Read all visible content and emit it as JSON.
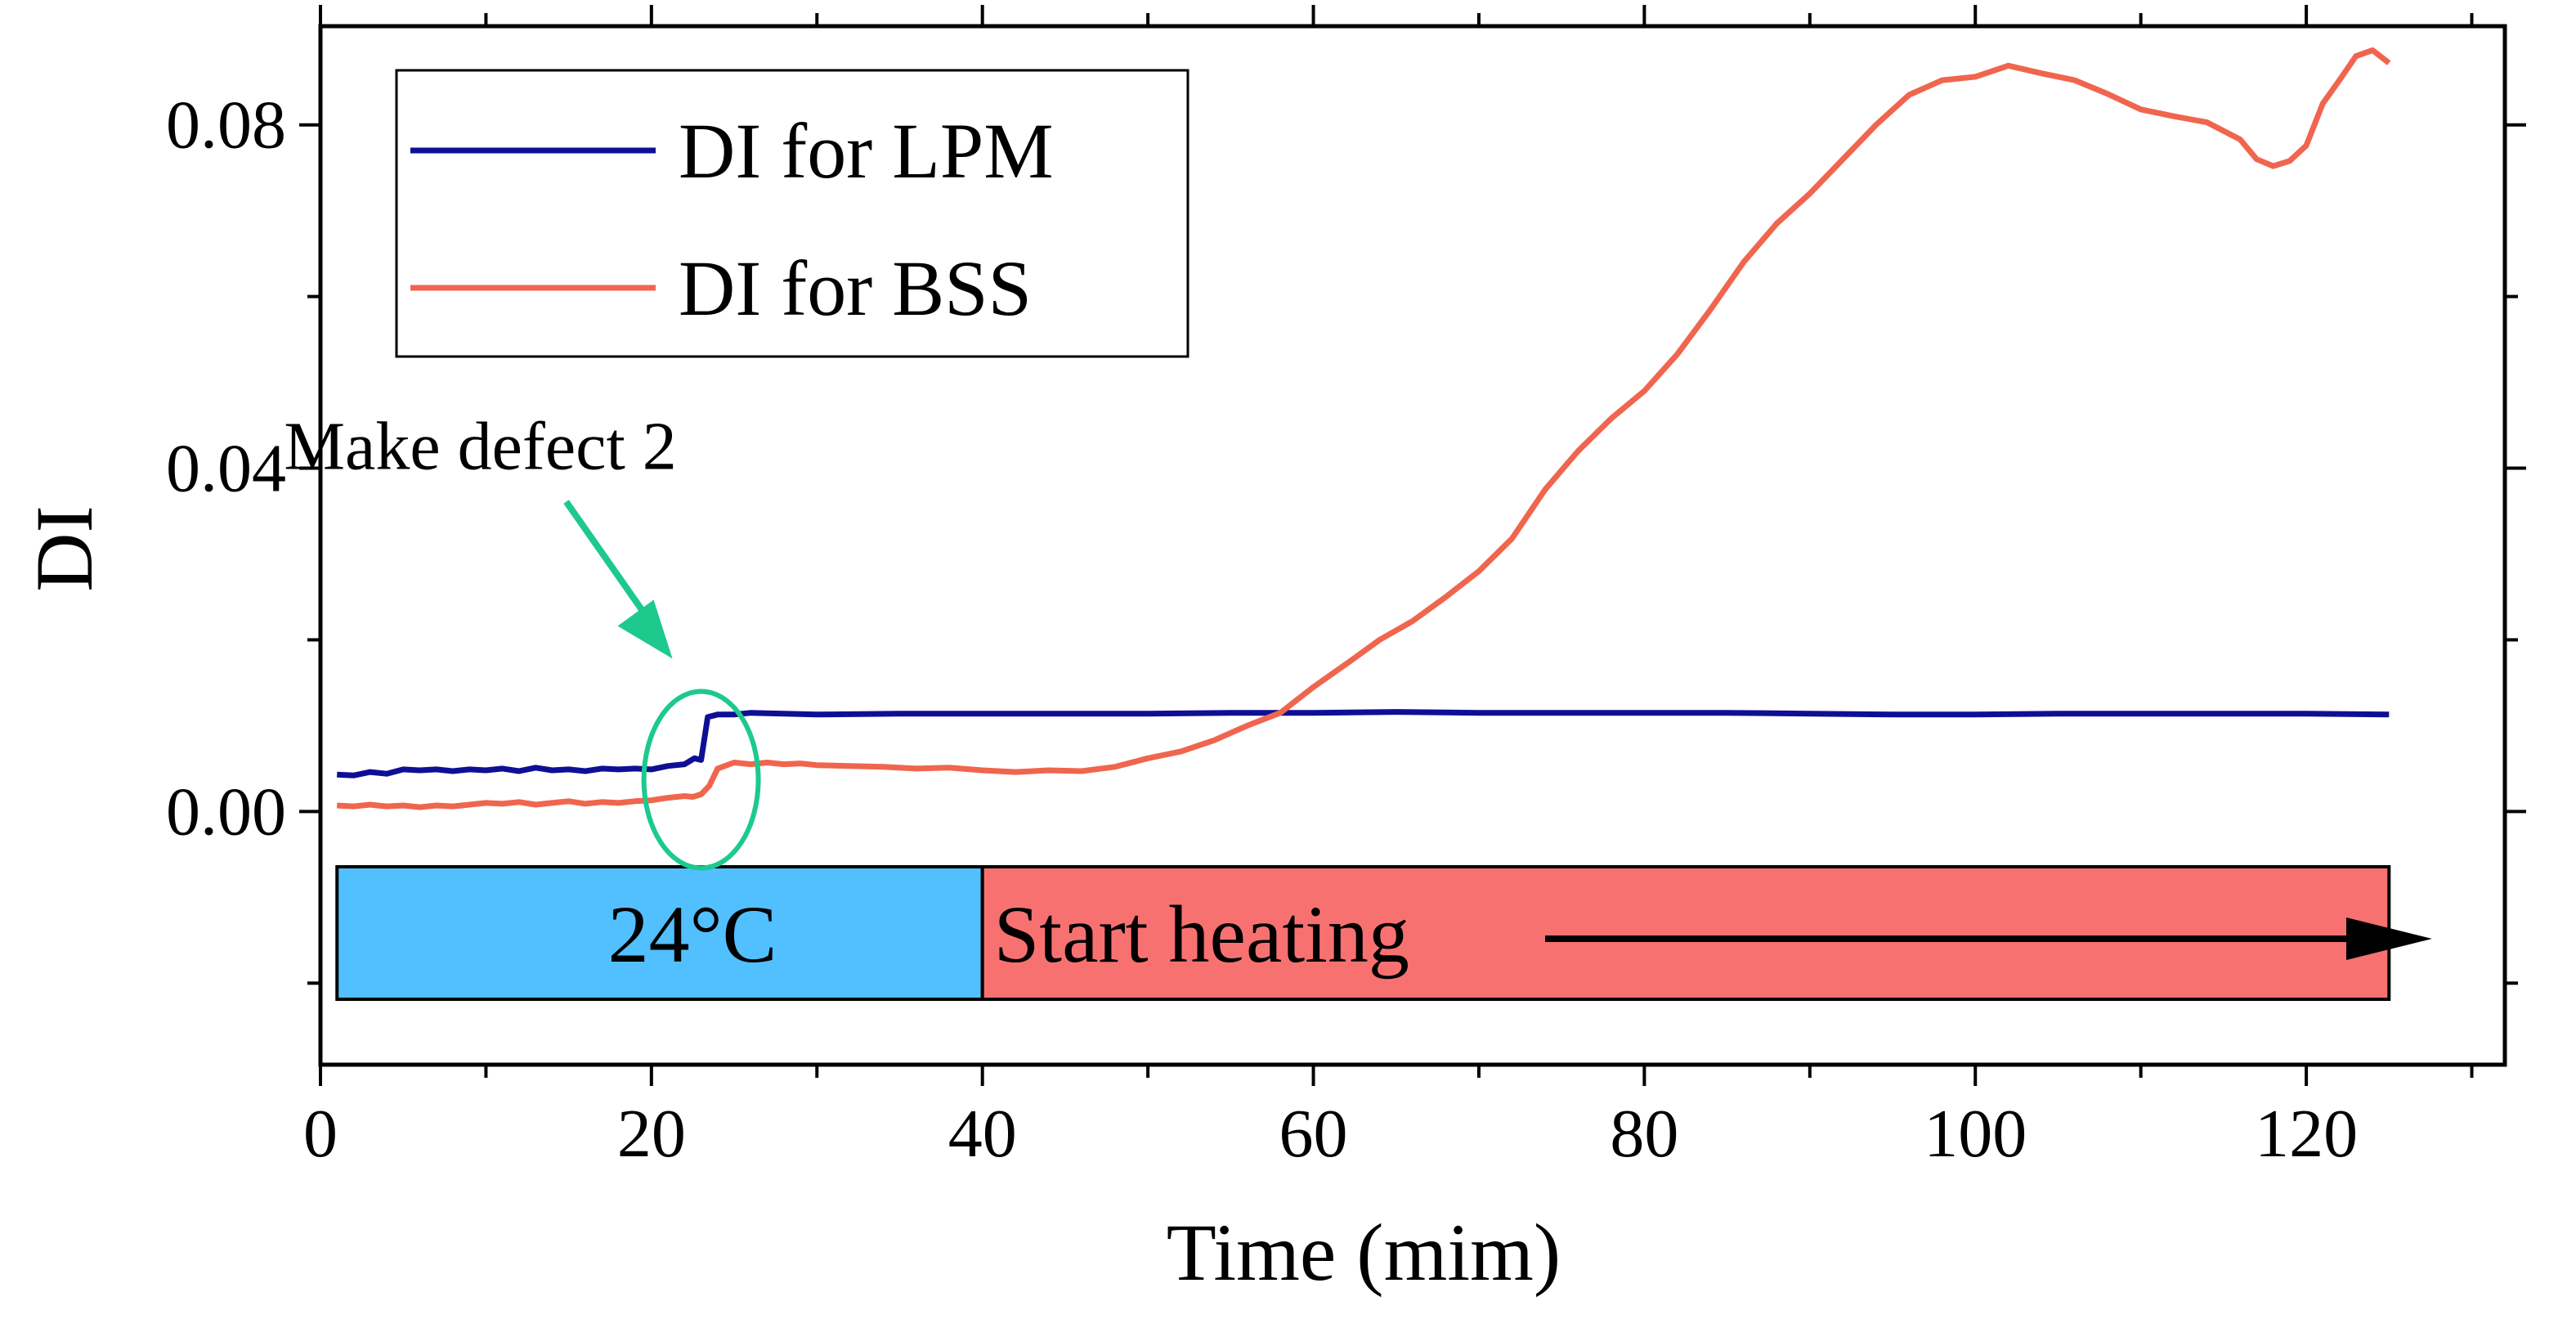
{
  "chart_data": {
    "type": "line",
    "title": "",
    "xlabel": "Time (mim)",
    "ylabel": "DI",
    "xlim": [
      0,
      132
    ],
    "ylim": [
      -0.0295,
      0.0915
    ],
    "x_ticks": [
      0,
      20,
      40,
      60,
      80,
      100,
      120
    ],
    "x_tick_labels": [
      "0",
      "20",
      "40",
      "60",
      "80",
      "100",
      "120"
    ],
    "y_ticks": [
      0.0,
      0.04,
      0.08
    ],
    "y_tick_labels": [
      "0.00",
      "0.04",
      "0.08"
    ],
    "grid": false,
    "legend_position": "top-left",
    "series": [
      {
        "name": "DI for LPM",
        "color": "#0f0f96",
        "points": [
          [
            1,
            0.0043
          ],
          [
            2,
            0.0042
          ],
          [
            3,
            0.0046
          ],
          [
            4,
            0.0044
          ],
          [
            5,
            0.0049
          ],
          [
            6,
            0.0048
          ],
          [
            7,
            0.0049
          ],
          [
            8,
            0.0047
          ],
          [
            9,
            0.0049
          ],
          [
            10,
            0.0048
          ],
          [
            11,
            0.005
          ],
          [
            12,
            0.0047
          ],
          [
            13,
            0.0051
          ],
          [
            14,
            0.0048
          ],
          [
            15,
            0.0049
          ],
          [
            16,
            0.0047
          ],
          [
            17,
            0.005
          ],
          [
            18,
            0.0049
          ],
          [
            19,
            0.005
          ],
          [
            20,
            0.0049
          ],
          [
            21,
            0.0053
          ],
          [
            22,
            0.0055
          ],
          [
            22.6,
            0.0062
          ],
          [
            23,
            0.006
          ],
          [
            23.4,
            0.011
          ],
          [
            24,
            0.0113
          ],
          [
            25,
            0.0113
          ],
          [
            26,
            0.0115
          ],
          [
            28,
            0.0114
          ],
          [
            30,
            0.0113
          ],
          [
            35,
            0.0114
          ],
          [
            40,
            0.0114
          ],
          [
            45,
            0.0114
          ],
          [
            50,
            0.0114
          ],
          [
            55,
            0.0115
          ],
          [
            60,
            0.0115
          ],
          [
            65,
            0.0116
          ],
          [
            70,
            0.0115
          ],
          [
            75,
            0.0115
          ],
          [
            80,
            0.0115
          ],
          [
            85,
            0.0115
          ],
          [
            90,
            0.0114
          ],
          [
            95,
            0.0113
          ],
          [
            100,
            0.0113
          ],
          [
            105,
            0.0114
          ],
          [
            110,
            0.0114
          ],
          [
            115,
            0.0114
          ],
          [
            120,
            0.0114
          ],
          [
            125,
            0.0113
          ]
        ]
      },
      {
        "name": "DI for BSS",
        "color": "#f0654e",
        "points": [
          [
            1,
            0.0007
          ],
          [
            2,
            0.0006
          ],
          [
            3,
            0.0008
          ],
          [
            4,
            0.0006
          ],
          [
            5,
            0.0007
          ],
          [
            6,
            0.0005
          ],
          [
            7,
            0.0007
          ],
          [
            8,
            0.0006
          ],
          [
            9,
            0.0008
          ],
          [
            10,
            0.001
          ],
          [
            11,
            0.0009
          ],
          [
            12,
            0.0011
          ],
          [
            13,
            0.0008
          ],
          [
            14,
            0.001
          ],
          [
            15,
            0.0012
          ],
          [
            16,
            0.0009
          ],
          [
            17,
            0.0011
          ],
          [
            18,
            0.001
          ],
          [
            19,
            0.0012
          ],
          [
            20,
            0.0013
          ],
          [
            21,
            0.0016
          ],
          [
            22,
            0.0018
          ],
          [
            22.5,
            0.0017
          ],
          [
            23,
            0.002
          ],
          [
            23.5,
            0.003
          ],
          [
            24,
            0.005
          ],
          [
            25,
            0.0057
          ],
          [
            26,
            0.0055
          ],
          [
            27,
            0.0057
          ],
          [
            28,
            0.0055
          ],
          [
            29,
            0.0056
          ],
          [
            30,
            0.0054
          ],
          [
            32,
            0.0053
          ],
          [
            34,
            0.0052
          ],
          [
            36,
            0.005
          ],
          [
            38,
            0.0051
          ],
          [
            40,
            0.0048
          ],
          [
            42,
            0.0046
          ],
          [
            44,
            0.0048
          ],
          [
            46,
            0.0047
          ],
          [
            48,
            0.0052
          ],
          [
            50,
            0.0062
          ],
          [
            52,
            0.007
          ],
          [
            54,
            0.0083
          ],
          [
            56,
            0.01
          ],
          [
            58,
            0.0115
          ],
          [
            60,
            0.0145
          ],
          [
            62,
            0.0172
          ],
          [
            64,
            0.02
          ],
          [
            66,
            0.0222
          ],
          [
            68,
            0.025
          ],
          [
            70,
            0.028
          ],
          [
            72,
            0.0318
          ],
          [
            74,
            0.0375
          ],
          [
            76,
            0.042
          ],
          [
            78,
            0.0458
          ],
          [
            80,
            0.049
          ],
          [
            82,
            0.0533
          ],
          [
            84,
            0.0585
          ],
          [
            86,
            0.064
          ],
          [
            88,
            0.0685
          ],
          [
            90,
            0.072
          ],
          [
            92,
            0.076
          ],
          [
            94,
            0.08
          ],
          [
            96,
            0.0835
          ],
          [
            98,
            0.0852
          ],
          [
            100,
            0.0856
          ],
          [
            102,
            0.0869
          ],
          [
            104,
            0.086
          ],
          [
            106,
            0.0852
          ],
          [
            108,
            0.0836
          ],
          [
            110,
            0.0818
          ],
          [
            112,
            0.081
          ],
          [
            114,
            0.0803
          ],
          [
            116,
            0.0783
          ],
          [
            117,
            0.076
          ],
          [
            118,
            0.0752
          ],
          [
            119,
            0.0758
          ],
          [
            120,
            0.0776
          ],
          [
            121,
            0.0825
          ],
          [
            122,
            0.0852
          ],
          [
            123,
            0.088
          ],
          [
            124,
            0.0887
          ],
          [
            125,
            0.0872
          ]
        ]
      }
    ],
    "annotations": [
      {
        "text": "Make defect 2",
        "target_x": 23,
        "target_y": 0.0037,
        "color": "#1dc98d"
      }
    ],
    "bands": [
      {
        "label": "24°C",
        "x_start": 1,
        "x_end": 40,
        "color": "#52bfff"
      },
      {
        "label": "Start heating",
        "x_start": 40,
        "x_end": 125,
        "color": "#f87171"
      }
    ]
  }
}
